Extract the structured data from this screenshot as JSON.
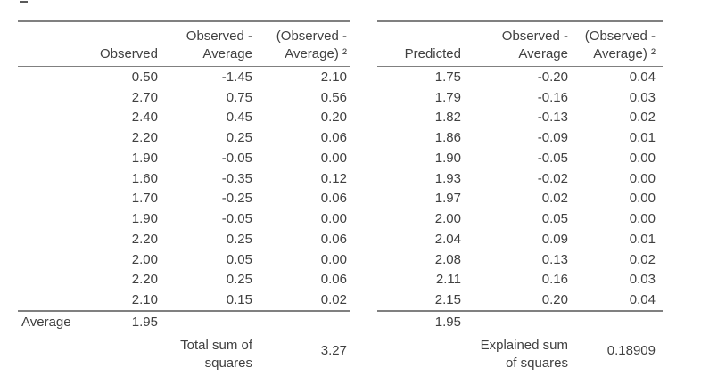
{
  "colors": {
    "text": "#404040",
    "rule_line": "#808080",
    "background": "#ffffff"
  },
  "left_table": {
    "headers": {
      "label": "",
      "col1": "Observed",
      "col2": "Observed -\nAverage",
      "col3": "(Observed -\nAverage) ²"
    },
    "rows": [
      [
        "0.50",
        "-1.45",
        "2.10"
      ],
      [
        "2.70",
        "0.75",
        "0.56"
      ],
      [
        "2.40",
        "0.45",
        "0.20"
      ],
      [
        "2.20",
        "0.25",
        "0.06"
      ],
      [
        "1.90",
        "-0.05",
        "0.00"
      ],
      [
        "1.60",
        "-0.35",
        "0.12"
      ],
      [
        "1.70",
        "-0.25",
        "0.06"
      ],
      [
        "1.90",
        "-0.05",
        "0.00"
      ],
      [
        "2.20",
        "0.25",
        "0.06"
      ],
      [
        "2.00",
        "0.05",
        "0.00"
      ],
      [
        "2.20",
        "0.25",
        "0.06"
      ],
      [
        "2.10",
        "0.15",
        "0.02"
      ]
    ],
    "average_label": "Average",
    "average_value": "1.95",
    "sum_label": "Total sum of\nsquares",
    "sum_value": "3.27"
  },
  "right_table": {
    "headers": {
      "col1": "Predicted",
      "col2": "Observed -\nAverage",
      "col3": "(Observed -\nAverage) ²"
    },
    "rows": [
      [
        "1.75",
        "-0.20",
        "0.04"
      ],
      [
        "1.79",
        "-0.16",
        "0.03"
      ],
      [
        "1.82",
        "-0.13",
        "0.02"
      ],
      [
        "1.86",
        "-0.09",
        "0.01"
      ],
      [
        "1.90",
        "-0.05",
        "0.00"
      ],
      [
        "1.93",
        "-0.02",
        "0.00"
      ],
      [
        "1.97",
        "0.02",
        "0.00"
      ],
      [
        "2.00",
        "0.05",
        "0.00"
      ],
      [
        "2.04",
        "0.09",
        "0.01"
      ],
      [
        "2.08",
        "0.13",
        "0.02"
      ],
      [
        "2.11",
        "0.16",
        "0.03"
      ],
      [
        "2.15",
        "0.20",
        "0.04"
      ]
    ],
    "average_value": "1.95",
    "sum_label": "Explained sum\nof squares",
    "sum_value": "0.18909"
  },
  "chart_data": [
    {
      "type": "table",
      "title": "Total sum of squares",
      "columns": [
        "Observed",
        "Observed - Average",
        "(Observed - Average) ²"
      ],
      "rows": [
        [
          0.5,
          -1.45,
          2.1
        ],
        [
          2.7,
          0.75,
          0.56
        ],
        [
          2.4,
          0.45,
          0.2
        ],
        [
          2.2,
          0.25,
          0.06
        ],
        [
          1.9,
          -0.05,
          0.0
        ],
        [
          1.6,
          -0.35,
          0.12
        ],
        [
          1.7,
          -0.25,
          0.06
        ],
        [
          1.9,
          -0.05,
          0.0
        ],
        [
          2.2,
          0.25,
          0.06
        ],
        [
          2.0,
          0.05,
          0.0
        ],
        [
          2.2,
          0.25,
          0.06
        ],
        [
          2.1,
          0.15,
          0.02
        ]
      ],
      "average_observed": 1.95,
      "total_sum_of_squares": 3.27
    },
    {
      "type": "table",
      "title": "Explained sum of squares",
      "columns": [
        "Predicted",
        "Observed - Average",
        "(Observed - Average) ²"
      ],
      "rows": [
        [
          1.75,
          -0.2,
          0.04
        ],
        [
          1.79,
          -0.16,
          0.03
        ],
        [
          1.82,
          -0.13,
          0.02
        ],
        [
          1.86,
          -0.09,
          0.01
        ],
        [
          1.9,
          -0.05,
          0.0
        ],
        [
          1.93,
          -0.02,
          0.0
        ],
        [
          1.97,
          0.02,
          0.0
        ],
        [
          2.0,
          0.05,
          0.0
        ],
        [
          2.04,
          0.09,
          0.01
        ],
        [
          2.08,
          0.13,
          0.02
        ],
        [
          2.11,
          0.16,
          0.03
        ],
        [
          2.15,
          0.2,
          0.04
        ]
      ],
      "average_predicted": 1.95,
      "explained_sum_of_squares": 0.18909
    }
  ]
}
